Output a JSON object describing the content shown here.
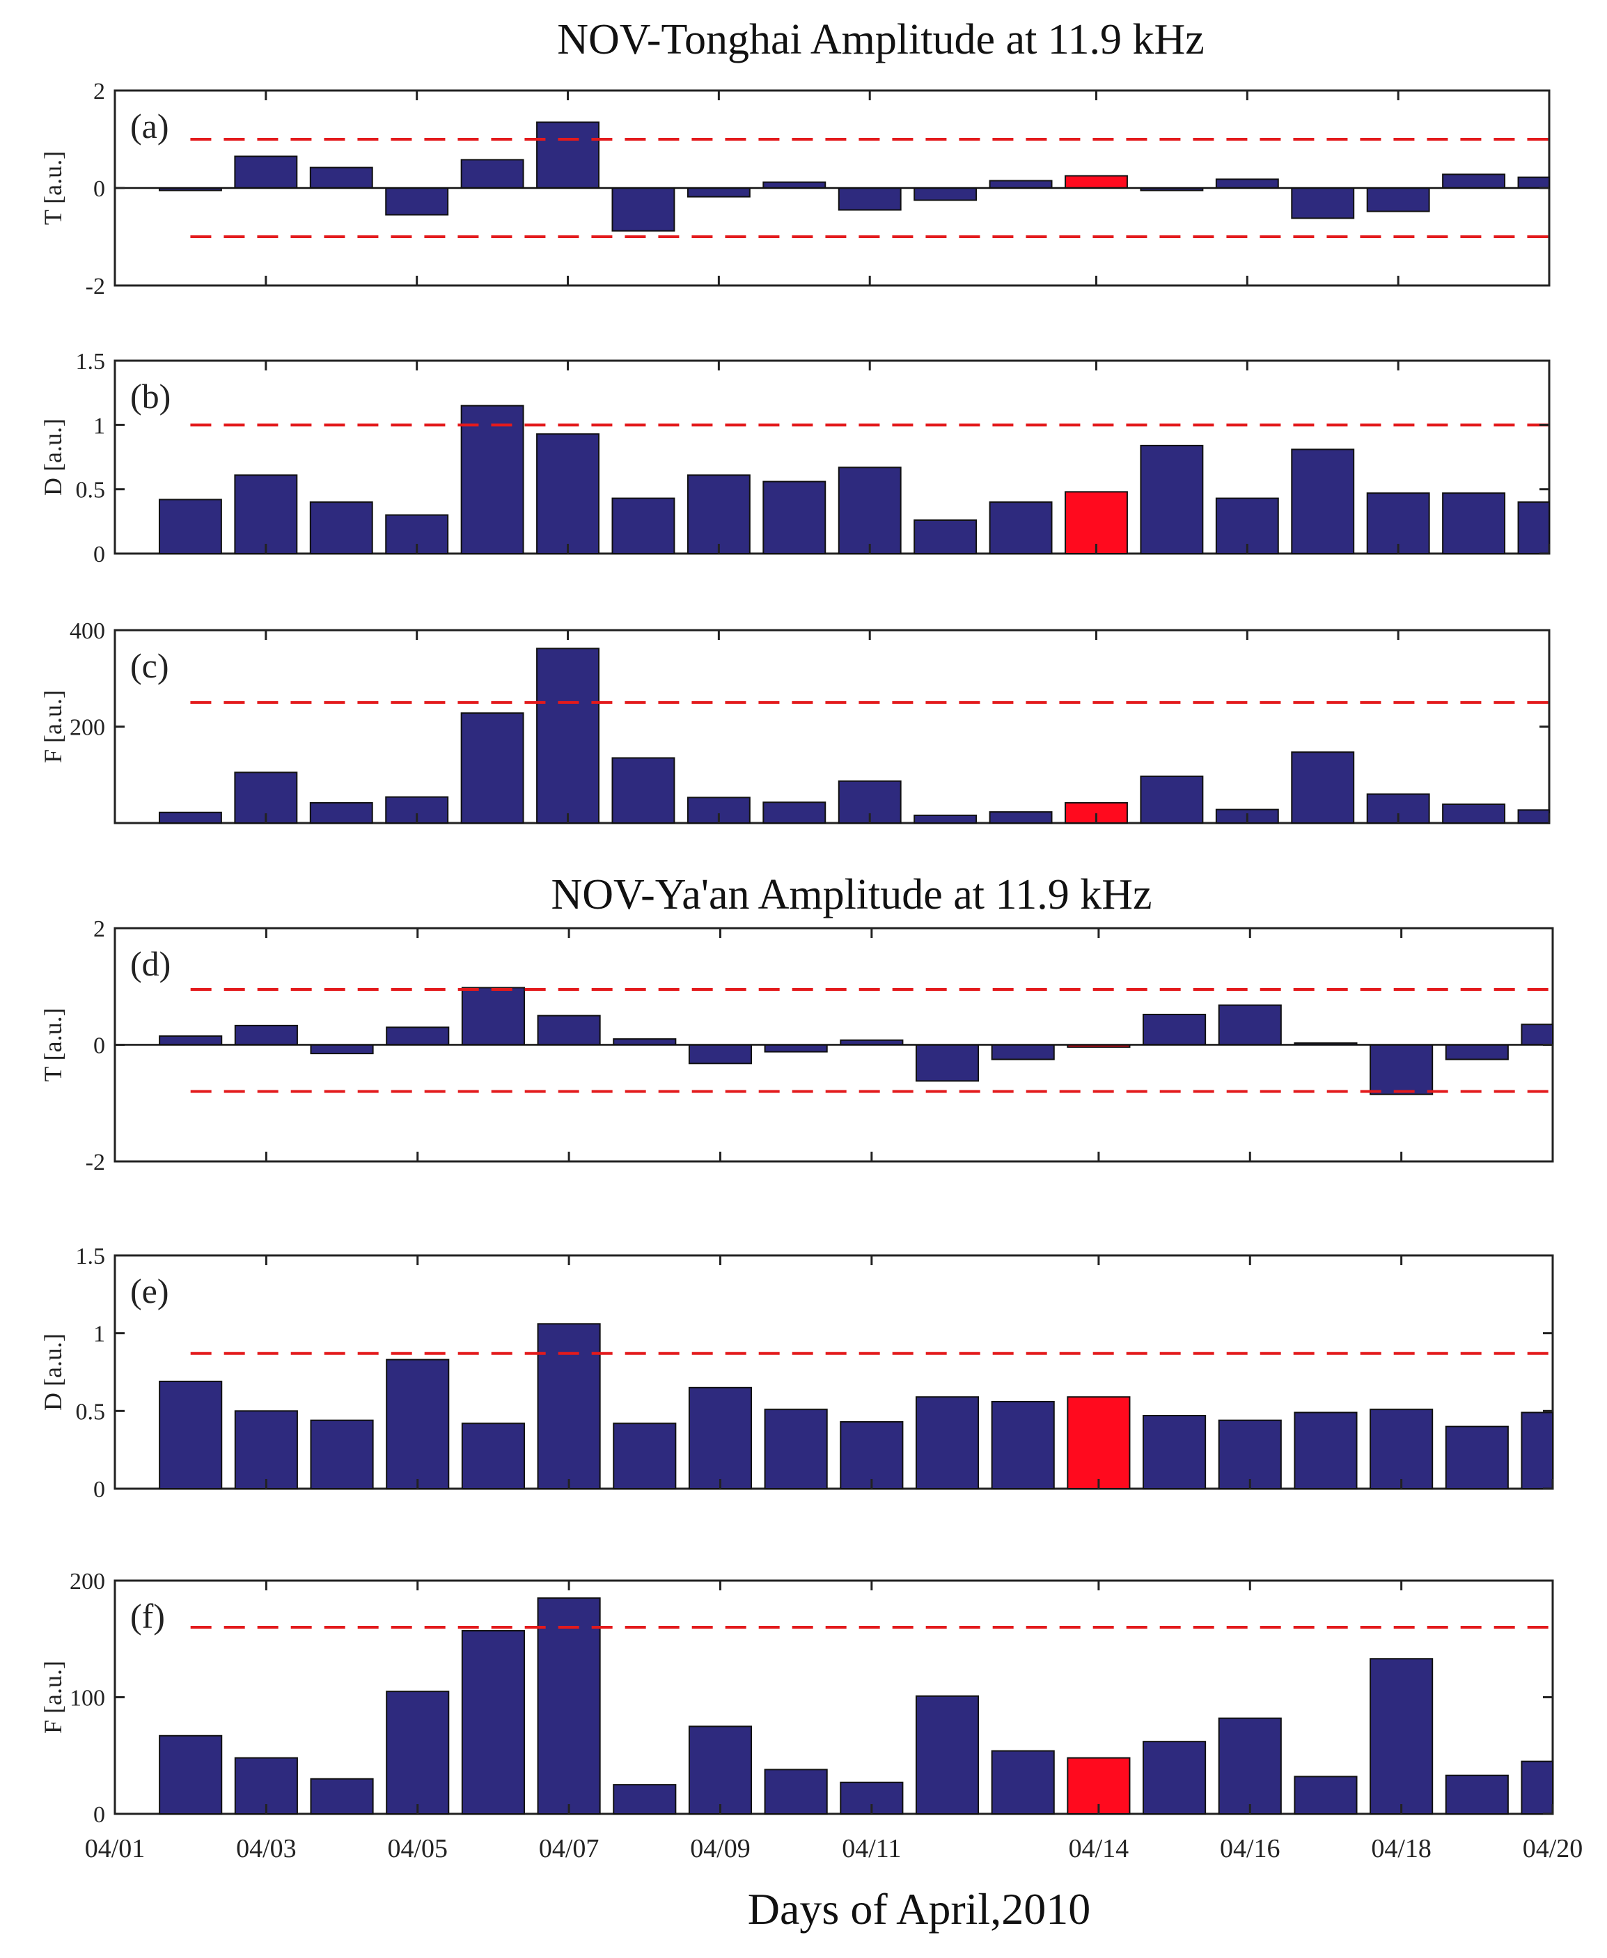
{
  "colors": {
    "bar": "#2e2a7e",
    "highlight": "#ff0a1e",
    "threshold": "#e31a1c",
    "axis": "#222222"
  },
  "chart_data": {
    "type": "bar",
    "x": [
      "04/02",
      "04/03",
      "04/04",
      "04/05",
      "04/06",
      "04/07",
      "04/08",
      "04/09",
      "04/10",
      "04/11",
      "04/12",
      "04/13",
      "04/14",
      "04/15",
      "04/16",
      "04/17",
      "04/18",
      "04/19",
      "04/20"
    ],
    "xticks": [
      "04/01",
      "04/03",
      "04/05",
      "04/07",
      "04/09",
      "04/11",
      "04/14",
      "04/16",
      "04/18",
      "04/20"
    ],
    "xlim": [
      1,
      20
    ],
    "xlabel": "Days of April,2010",
    "highlight": "04/14",
    "groups": [
      {
        "title": "NOV-Tonghai Amplitude at 11.9 kHz",
        "panels": [
          "a",
          "b",
          "c"
        ]
      },
      {
        "title": "NOV-Ya'an Amplitude at 11.9 kHz",
        "panels": [
          "d",
          "e",
          "f"
        ]
      }
    ],
    "panels": [
      {
        "id": "a",
        "label": "(a)",
        "ylabel": "T [a.u.]",
        "ylim": [
          -2,
          2
        ],
        "yticks": [
          "-2",
          "0",
          "2"
        ],
        "thresholds": [
          1,
          -1
        ],
        "zero_line": true,
        "values": [
          -0.05,
          0.65,
          0.42,
          -0.55,
          0.58,
          1.35,
          -0.88,
          -0.18,
          0.12,
          -0.45,
          -0.25,
          0.15,
          0.25,
          -0.05,
          0.18,
          -0.62,
          -0.48,
          0.28,
          0.22
        ]
      },
      {
        "id": "b",
        "label": "(b)",
        "ylabel": "D [a.u.]",
        "ylim": [
          0,
          1.5
        ],
        "yticks": [
          "0",
          "0.5",
          "1",
          "1.5"
        ],
        "thresholds": [
          1
        ],
        "values": [
          0.42,
          0.61,
          0.4,
          0.3,
          1.15,
          0.93,
          0.43,
          0.61,
          0.56,
          0.67,
          0.26,
          0.4,
          0.48,
          0.84,
          0.43,
          0.81,
          0.47,
          0.47,
          0.4
        ]
      },
      {
        "id": "c",
        "label": "(c)",
        "ylabel": "F [a.u.]",
        "ylim": [
          0,
          400
        ],
        "yticks": [
          "200",
          "400"
        ],
        "thresholds": [
          250
        ],
        "values": [
          22,
          105,
          42,
          54,
          228,
          362,
          135,
          53,
          43,
          87,
          16,
          23,
          42,
          97,
          28,
          147,
          60,
          39,
          27
        ]
      },
      {
        "id": "d",
        "label": "(d)",
        "ylabel": "T [a.u.]",
        "ylim": [
          -2,
          2
        ],
        "yticks": [
          "-2",
          "0",
          "2"
        ],
        "thresholds": [
          0.95,
          -0.8
        ],
        "zero_line": true,
        "values": [
          0.15,
          0.33,
          -0.15,
          0.3,
          0.98,
          0.5,
          0.1,
          -0.32,
          -0.12,
          0.08,
          -0.62,
          -0.25,
          -0.04,
          0.52,
          0.68,
          0.03,
          -0.85,
          -0.25,
          0.35
        ]
      },
      {
        "id": "e",
        "label": "(e)",
        "ylabel": "D [a.u.]",
        "ylim": [
          0,
          1.5
        ],
        "yticks": [
          "0",
          "0.5",
          "1",
          "1.5"
        ],
        "thresholds": [
          0.87
        ],
        "values": [
          0.69,
          0.5,
          0.44,
          0.83,
          0.42,
          1.06,
          0.42,
          0.65,
          0.51,
          0.43,
          0.59,
          0.56,
          0.59,
          0.47,
          0.44,
          0.49,
          0.51,
          0.4,
          0.49
        ]
      },
      {
        "id": "f",
        "label": "(f)",
        "ylabel": "F [a.u.]",
        "ylim": [
          0,
          200
        ],
        "yticks": [
          "0",
          "100",
          "200"
        ],
        "thresholds": [
          160
        ],
        "values": [
          67,
          48,
          30,
          105,
          157,
          185,
          25,
          75,
          38,
          27,
          101,
          54,
          48,
          62,
          82,
          32,
          133,
          33,
          45
        ]
      }
    ]
  }
}
